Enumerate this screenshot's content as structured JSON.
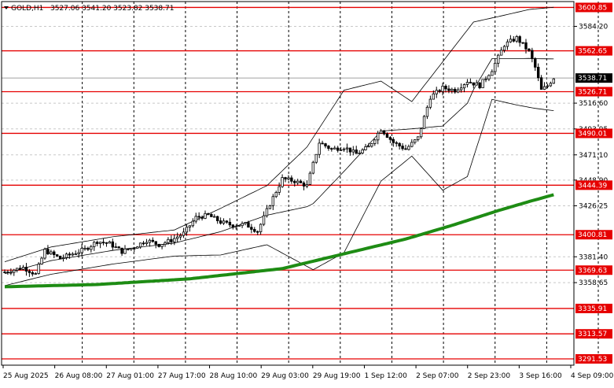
{
  "header": {
    "symbol": "GOLD,H1",
    "ohlc": "3527.06 3541.20 3523.82 3538.71"
  },
  "colors": {
    "background": "#ffffff",
    "axis": "#000000",
    "grid": "#c8c8c8",
    "level_line": "#e60000",
    "ma_line": "#1e8c14",
    "candle": "#000000",
    "bollinger": "#000000",
    "current_price_label_bg": "#000000"
  },
  "chart_data": {
    "type": "candlestick",
    "symbol": "GOLD",
    "timeframe": "H1",
    "y_axis": {
      "range": [
        3286,
        3606
      ],
      "ticks": [
        "3584.20",
        "3516.60",
        "3493.95",
        "3471.10",
        "3448.90",
        "3426.25",
        "3381.40",
        "3358.65"
      ],
      "tick_values": [
        3584.2,
        3516.6,
        3493.95,
        3471.1,
        3448.9,
        3426.25,
        3381.4,
        3358.65
      ]
    },
    "x_axis": {
      "labels": [
        "25 Aug 2025",
        "26 Aug 08:00",
        "27 Aug 01:00",
        "27 Aug 17:00",
        "28 Aug 10:00",
        "29 Aug 03:00",
        "29 Aug 19:00",
        "1 Sep 12:00",
        "2 Sep 07:00",
        "2 Sep 23:00",
        "3 Sep 16:00",
        "4 Sep 09:00"
      ]
    },
    "levels": [
      "3600.85",
      "3562.65",
      "3526.71",
      "3490.01",
      "3444.39",
      "3400.81",
      "3369.63",
      "3335.91",
      "3313.57",
      "3291.53"
    ],
    "level_values": [
      3600.85,
      3562.65,
      3526.71,
      3490.01,
      3444.39,
      3400.81,
      3369.63,
      3335.91,
      3313.57,
      3291.53
    ],
    "current_price": "3538.71",
    "current_price_value": 3538.71,
    "indicators": {
      "bollinger_bands": true,
      "moving_average": true
    },
    "price_path": [
      [
        0,
        3368
      ],
      [
        6,
        3372
      ],
      [
        10,
        3366
      ],
      [
        13,
        3387
      ],
      [
        18,
        3380
      ],
      [
        22,
        3384
      ],
      [
        26,
        3388
      ],
      [
        30,
        3395
      ],
      [
        34,
        3393
      ],
      [
        38,
        3386
      ],
      [
        42,
        3390
      ],
      [
        46,
        3396
      ],
      [
        50,
        3392
      ],
      [
        54,
        3396
      ],
      [
        58,
        3402
      ],
      [
        62,
        3416
      ],
      [
        66,
        3418
      ],
      [
        70,
        3412
      ],
      [
        74,
        3409
      ],
      [
        78,
        3410
      ],
      [
        82,
        3404
      ],
      [
        86,
        3428
      ],
      [
        90,
        3450
      ],
      [
        94,
        3448
      ],
      [
        98,
        3444
      ],
      [
        102,
        3482
      ],
      [
        106,
        3476
      ],
      [
        110,
        3478
      ],
      [
        114,
        3472
      ],
      [
        118,
        3478
      ],
      [
        122,
        3494
      ],
      [
        126,
        3482
      ],
      [
        130,
        3476
      ],
      [
        134,
        3486
      ],
      [
        138,
        3522
      ],
      [
        142,
        3530
      ],
      [
        146,
        3528
      ],
      [
        150,
        3536
      ],
      [
        154,
        3532
      ],
      [
        158,
        3546
      ],
      [
        162,
        3568
      ],
      [
        166,
        3574
      ],
      [
        170,
        3562
      ],
      [
        172,
        3548
      ],
      [
        174,
        3528
      ],
      [
        176,
        3532
      ],
      [
        178,
        3539
      ]
    ],
    "ma_path": [
      [
        0,
        3355
      ],
      [
        30,
        3357
      ],
      [
        60,
        3362
      ],
      [
        90,
        3371
      ],
      [
        110,
        3384
      ],
      [
        130,
        3397
      ],
      [
        145,
        3409
      ],
      [
        160,
        3422
      ],
      [
        170,
        3430
      ],
      [
        178,
        3436
      ]
    ],
    "bb_upper_path": [
      [
        0,
        3377
      ],
      [
        15,
        3390
      ],
      [
        35,
        3399
      ],
      [
        55,
        3405
      ],
      [
        70,
        3424
      ],
      [
        85,
        3444
      ],
      [
        98,
        3478
      ],
      [
        110,
        3528
      ],
      [
        122,
        3536
      ],
      [
        132,
        3518
      ],
      [
        142,
        3553
      ],
      [
        152,
        3588
      ],
      [
        162,
        3594
      ],
      [
        170,
        3599
      ],
      [
        178,
        3601
      ]
    ],
    "bb_lower_path": [
      [
        0,
        3356
      ],
      [
        15,
        3366
      ],
      [
        35,
        3375
      ],
      [
        55,
        3382
      ],
      [
        70,
        3383
      ],
      [
        85,
        3392
      ],
      [
        100,
        3370
      ],
      [
        110,
        3385
      ],
      [
        122,
        3448
      ],
      [
        132,
        3470
      ],
      [
        142,
        3440
      ],
      [
        150,
        3452
      ],
      [
        158,
        3520
      ],
      [
        166,
        3515
      ],
      [
        172,
        3512
      ],
      [
        178,
        3510
      ]
    ],
    "max_index": 178
  }
}
